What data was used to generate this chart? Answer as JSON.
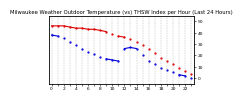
{
  "title": "Milwaukee Weather Outdoor Temperature (vs) THSW Index per Hour (Last 24 Hours)",
  "background_color": "#ffffff",
  "plot_bg_color": "#ffffff",
  "grid_color": "#999999",
  "hours": [
    0,
    1,
    2,
    3,
    4,
    5,
    6,
    7,
    8,
    9,
    10,
    11,
    12,
    13,
    14,
    15,
    16,
    17,
    18,
    19,
    20,
    21,
    22,
    23
  ],
  "temp_values": [
    38,
    37,
    35,
    32,
    29,
    26,
    23,
    21,
    19,
    17,
    16,
    15,
    26,
    27,
    26,
    20,
    15,
    12,
    9,
    7,
    5,
    3,
    2,
    0
  ],
  "thsw_values": [
    46,
    46,
    46,
    45,
    44,
    44,
    43,
    43,
    42,
    41,
    39,
    37,
    36,
    34,
    32,
    29,
    26,
    22,
    18,
    15,
    12,
    9,
    6,
    4
  ],
  "temp_color": "#0000dd",
  "thsw_color": "#dd0000",
  "ylim_min": -5,
  "ylim_max": 55,
  "yticks": [
    50,
    40,
    30,
    20,
    10,
    0
  ],
  "ytick_labels": [
    "50",
    "40",
    "30",
    "20",
    "10",
    "0"
  ],
  "title_fontsize": 3.8,
  "tick_fontsize": 3.2,
  "line_width": 0.8,
  "marker_size": 1.2,
  "border_color": "#000000"
}
